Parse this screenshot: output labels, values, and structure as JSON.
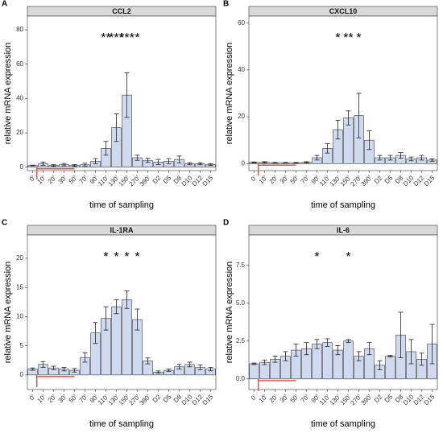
{
  "chart_data": [
    {
      "type": "bar",
      "label": "A",
      "title": "CCL2",
      "ylabel": "relative mRNA expression",
      "xlabel": "time of sampling",
      "categories": [
        "0'",
        "10'",
        "20'",
        "30'",
        "50'",
        "70'",
        "90'",
        "110'",
        "130'",
        "150'",
        "270'",
        "390'",
        "D2",
        "D5",
        "D8",
        "D10",
        "D12",
        "D15"
      ],
      "values": [
        1,
        2,
        1,
        1.5,
        1,
        1.5,
        3.5,
        11,
        23,
        42,
        5.5,
        4,
        3,
        3.5,
        4.5,
        2,
        2,
        1.5
      ],
      "errors": [
        0.2,
        1,
        0.5,
        0.7,
        0.5,
        0.8,
        1.5,
        4,
        8,
        13,
        1.5,
        1.2,
        1.5,
        1.5,
        2,
        0.6,
        0.6,
        0.5
      ],
      "color": "#cfdaf0",
      "ylim": [
        -2,
        88
      ],
      "yticks": [
        0,
        20,
        40,
        60,
        80
      ],
      "annotations": [
        {
          "category": "110'",
          "text": "**"
        },
        {
          "category": "130'",
          "text": "***"
        },
        {
          "category": "150'",
          "text": "***"
        },
        {
          "category": "270'",
          "text": "*"
        }
      ]
    },
    {
      "type": "bar",
      "label": "B",
      "title": "CXCL10",
      "ylabel": "relative mRNA expression",
      "xlabel": "time of sampling",
      "categories": [
        "0'",
        "10'",
        "20'",
        "30'",
        "50'",
        "70'",
        "90'",
        "110'",
        "130'",
        "150'",
        "270'",
        "390'",
        "D2",
        "D5",
        "D8",
        "D10",
        "D12",
        "D15"
      ],
      "values": [
        0.5,
        0.5,
        0.3,
        0.3,
        0.3,
        0.5,
        2.5,
        6.5,
        14.5,
        19.5,
        20.5,
        10,
        2.5,
        2.5,
        3.5,
        2,
        2.5,
        1.5
      ],
      "errors": [
        0.2,
        0.3,
        0.2,
        0.2,
        0.2,
        0.3,
        1,
        2,
        4,
        3,
        9.5,
        4,
        1,
        1,
        1.2,
        0.8,
        1,
        0.5
      ],
      "color": "#cfdaf0",
      "ylim": [
        -3,
        63
      ],
      "yticks": [
        0,
        20,
        40,
        60
      ],
      "annotations": [
        {
          "category": "130'",
          "text": "*"
        },
        {
          "category": "150'",
          "text": "**"
        },
        {
          "category": "270'",
          "text": "*"
        }
      ]
    },
    {
      "type": "bar",
      "label": "C",
      "title": "IL-1RA",
      "ylabel": "relative mRNA expression",
      "xlabel": "time of sampling",
      "categories": [
        "0'",
        "10'",
        "20'",
        "30'",
        "50'",
        "70'",
        "90'",
        "110'",
        "130'",
        "150'",
        "270'",
        "390'",
        "D2",
        "D5",
        "D8",
        "D10",
        "D12",
        "D15"
      ],
      "values": [
        1,
        1.8,
        1.2,
        1,
        0.8,
        3,
        7.2,
        9.7,
        11.7,
        12.9,
        9.5,
        2.4,
        0.5,
        0.8,
        1.4,
        1.8,
        1.3,
        1
      ],
      "errors": [
        0.2,
        0.5,
        0.3,
        0.3,
        0.3,
        0.8,
        1.8,
        2,
        1.2,
        1.5,
        1.8,
        0.5,
        0.2,
        0.2,
        0.4,
        0.4,
        0.4,
        0.3
      ],
      "color": "#cfdaf0",
      "ylim": [
        -2.5,
        24
      ],
      "yticks": [
        0,
        5,
        10,
        15,
        20
      ],
      "annotations": [
        {
          "category": "110'",
          "text": "*"
        },
        {
          "category": "130'",
          "text": "*"
        },
        {
          "category": "150'",
          "text": "*"
        },
        {
          "category": "270'",
          "text": "*"
        }
      ]
    },
    {
      "type": "bar",
      "label": "D",
      "title": "IL-6",
      "ylabel": "relative mRNA expression",
      "xlabel": "time of sampling",
      "categories": [
        "0'",
        "10'",
        "20'",
        "30'",
        "50'",
        "70'",
        "90'",
        "110'",
        "130'",
        "150'",
        "270'",
        "390'",
        "D2",
        "D5",
        "D8",
        "D10",
        "D12",
        "D15"
      ],
      "values": [
        1,
        1.1,
        1.3,
        1.5,
        1.9,
        2,
        2.3,
        2.4,
        1.9,
        2.5,
        1.5,
        2,
        0.9,
        1.5,
        2.9,
        1.8,
        1.3,
        2.3
      ],
      "errors": [
        0.05,
        0.15,
        0.2,
        0.3,
        0.4,
        0.4,
        0.3,
        0.25,
        0.3,
        0.1,
        0.3,
        0.4,
        0.3,
        0.05,
        1.5,
        0.8,
        0.4,
        1.3
      ],
      "color": "#cfdaf0",
      "ylim": [
        -0.7,
        9.5
      ],
      "yticks": [
        {
          "value": 0,
          "label": "0.0"
        },
        {
          "value": 2.5,
          "label": "2.5"
        },
        {
          "value": 5,
          "label": "5.0"
        },
        {
          "value": 7.5,
          "label": "7.5"
        }
      ],
      "annotations": [
        {
          "category": "90'",
          "text": "*"
        },
        {
          "category": "150'",
          "text": "*"
        }
      ]
    }
  ]
}
